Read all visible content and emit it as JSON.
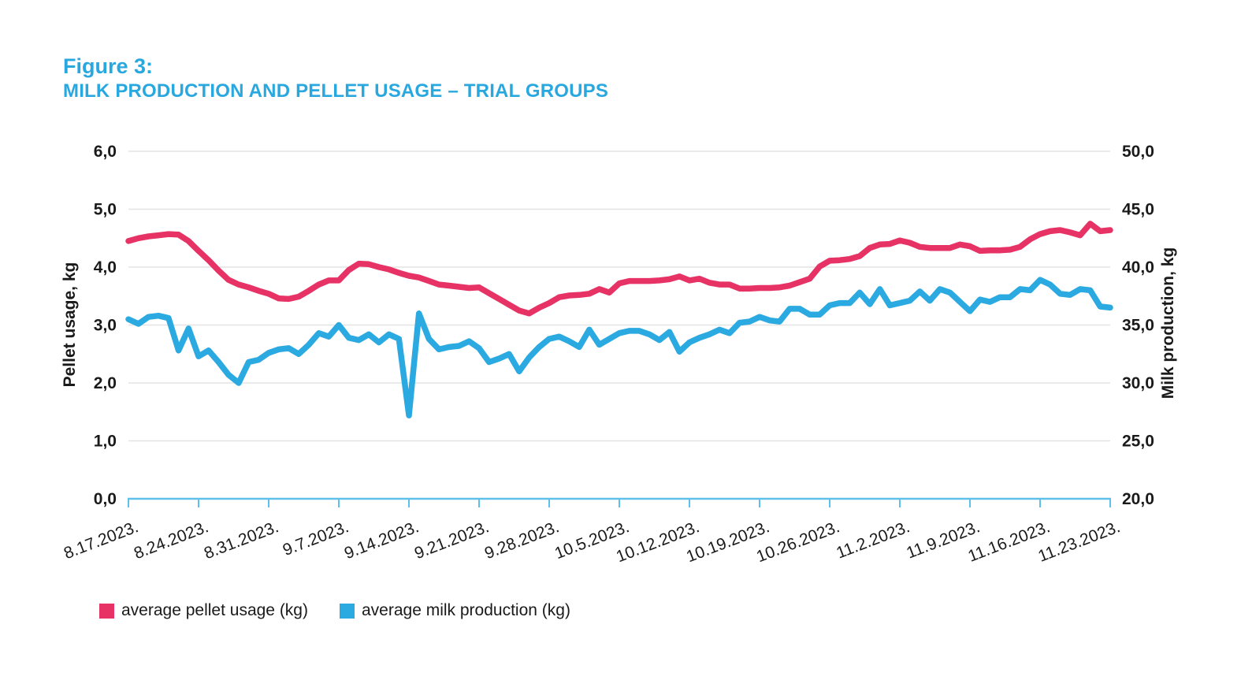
{
  "title": {
    "line1": "Figure 3:",
    "line2": "MILK PRODUCTION AND PELLET USAGE – TRIAL GROUPS"
  },
  "colors": {
    "title_blue": "#29A8DF",
    "pellet_pink": "#E73265",
    "milk_blue": "#2BA9E1",
    "x_axis_blue": "#5FC1EB",
    "gridline_gray": "#E3E3E3",
    "text_dark": "#1A1A1A"
  },
  "chart_data": {
    "type": "line",
    "title": "MILK PRODUCTION AND PELLET USAGE – TRIAL GROUPS",
    "grid": "horizontal",
    "legend_position": "bottom-left",
    "x_tick_labels": [
      "8.17.2023.",
      "8.24.2023.",
      "8.31.2023.",
      "9.7.2023.",
      "9.14.2023.",
      "9.21.2023.",
      "9.28.2023.",
      "10.5.2023.",
      "10.12.2023.",
      "10.19.2023.",
      "10.26.2023.",
      "11.2.2023.",
      "11.9.2023.",
      "11.16.2023.",
      "11.23.2023."
    ],
    "days_per_x_tick": 7,
    "left_axis": {
      "title": "Pellet usage, kg",
      "min": 0,
      "max": 6,
      "tick_labels": [
        "0,0",
        "1,0",
        "2,0",
        "3,0",
        "4,0",
        "5,0",
        "6,0"
      ]
    },
    "right_axis": {
      "title": "Milk production, kg",
      "min": 20,
      "max": 50,
      "tick_labels": [
        "20,0",
        "25,0",
        "30,0",
        "35,0",
        "40,0",
        "45,0",
        "50,0"
      ]
    },
    "series": [
      {
        "name": "average pellet usage (kg)",
        "axis": "left",
        "color": "#E73265",
        "values": [
          4.45,
          4.5,
          4.53,
          4.55,
          4.57,
          4.56,
          4.45,
          4.28,
          4.12,
          3.94,
          3.78,
          3.7,
          3.65,
          3.59,
          3.54,
          3.46,
          3.45,
          3.49,
          3.59,
          3.7,
          3.77,
          3.77,
          3.95,
          4.06,
          4.05,
          4.0,
          3.96,
          3.9,
          3.85,
          3.82,
          3.76,
          3.7,
          3.68,
          3.66,
          3.64,
          3.65,
          3.55,
          3.45,
          3.35,
          3.25,
          3.2,
          3.3,
          3.38,
          3.48,
          3.51,
          3.52,
          3.54,
          3.62,
          3.56,
          3.72,
          3.76,
          3.76,
          3.76,
          3.77,
          3.79,
          3.84,
          3.77,
          3.8,
          3.73,
          3.7,
          3.7,
          3.63,
          3.63,
          3.64,
          3.64,
          3.65,
          3.68,
          3.74,
          3.8,
          4.01,
          4.11,
          4.12,
          4.14,
          4.19,
          4.33,
          4.39,
          4.4,
          4.46,
          4.42,
          4.35,
          4.33,
          4.33,
          4.33,
          4.39,
          4.36,
          4.28,
          4.29,
          4.29,
          4.3,
          4.35,
          4.48,
          4.57,
          4.62,
          4.64,
          4.6,
          4.55,
          4.75,
          4.62,
          4.64
        ]
      },
      {
        "name": "average milk production (kg)",
        "axis": "right",
        "color": "#2BA9E1",
        "values": [
          35.5,
          35.1,
          35.7,
          35.8,
          35.6,
          32.8,
          34.7,
          32.3,
          32.8,
          31.8,
          30.7,
          30.0,
          31.8,
          32.0,
          32.6,
          32.9,
          33.0,
          32.5,
          33.3,
          34.3,
          34.0,
          35.0,
          33.9,
          33.7,
          34.2,
          33.5,
          34.2,
          33.8,
          27.2,
          36.0,
          33.8,
          32.9,
          33.1,
          33.2,
          33.6,
          33.0,
          31.8,
          32.1,
          32.5,
          31.0,
          32.2,
          33.1,
          33.8,
          34.0,
          33.6,
          33.1,
          34.6,
          33.3,
          33.8,
          34.3,
          34.5,
          34.5,
          34.2,
          33.7,
          34.4,
          32.7,
          33.5,
          33.9,
          34.2,
          34.6,
          34.3,
          35.2,
          35.3,
          35.7,
          35.4,
          35.3,
          36.4,
          36.4,
          35.9,
          35.9,
          36.7,
          36.9,
          36.9,
          37.8,
          36.8,
          38.1,
          36.7,
          36.9,
          37.1,
          37.9,
          37.1,
          38.1,
          37.8,
          37.0,
          36.2,
          37.2,
          37.0,
          37.4,
          37.4,
          38.1,
          38.0,
          38.9,
          38.5,
          37.7,
          37.6,
          38.1,
          38.0,
          36.6,
          36.5
        ]
      }
    ]
  }
}
